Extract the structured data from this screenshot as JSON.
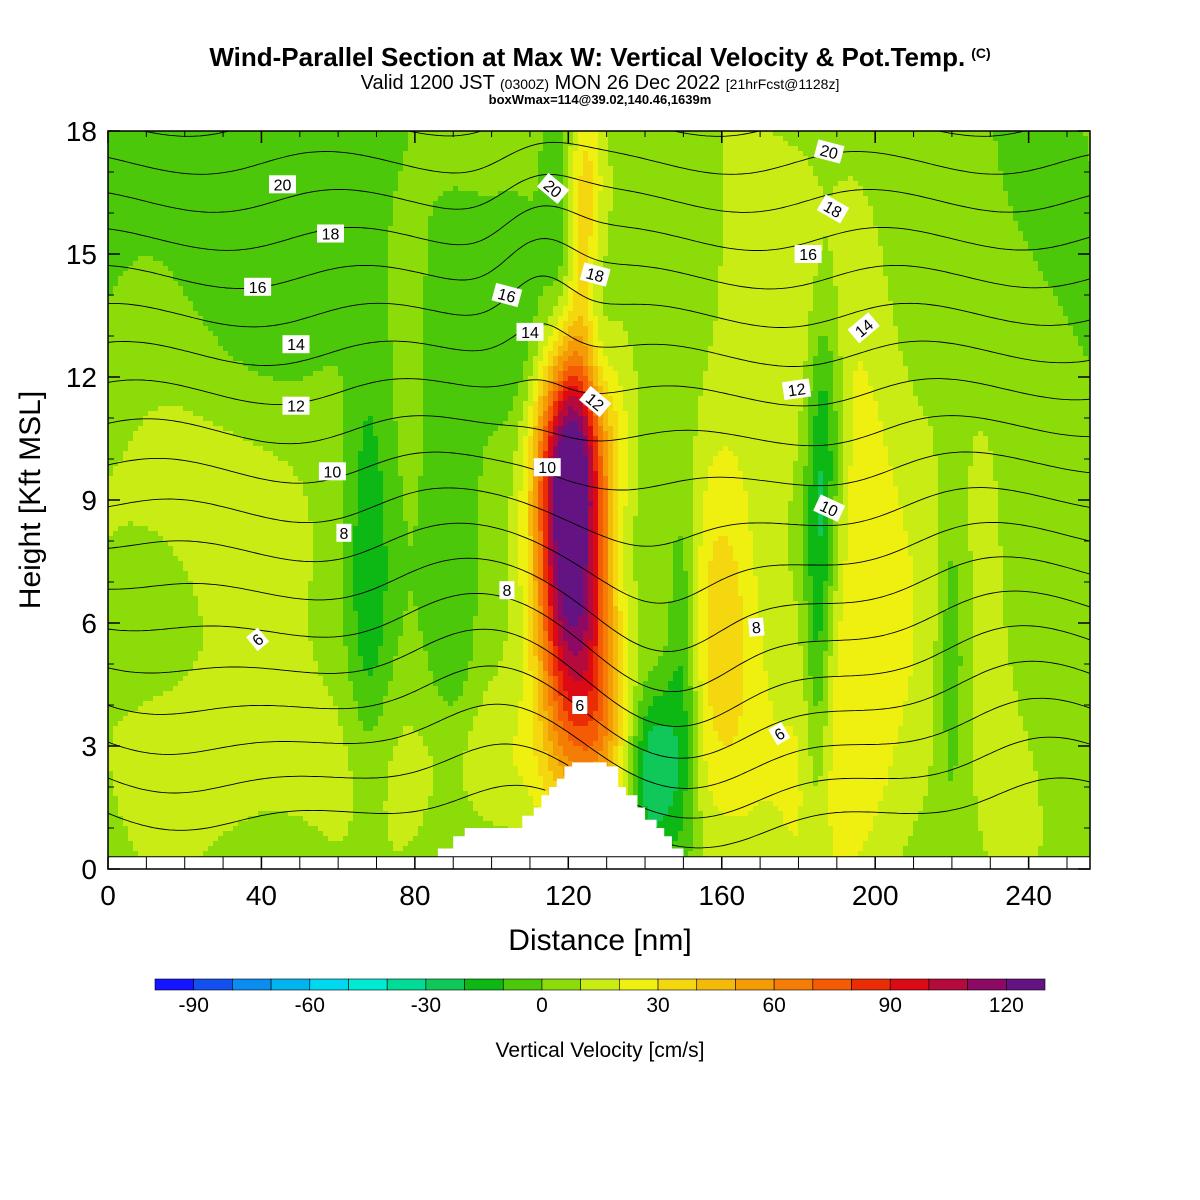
{
  "header": {
    "title": "Wind-Parallel Section at Max W: Vertical Velocity & Pot.Temp.",
    "copyright": "(C)",
    "valid_main": "Valid 1200 JST",
    "valid_utc": "(0300Z)",
    "valid_date": "MON 26 Dec 2022",
    "forecast": "[21hrFcst@1128z]",
    "box_info": "boxWmax=114@39.02,140.46,1639m"
  },
  "chart_data": {
    "type": "heatmap",
    "title": "Wind-Parallel Section at Max W: Vertical Velocity & Pot.Temp.",
    "xlabel": "Distance [nm]",
    "ylabel": "Height [Kft MSL]",
    "xlim": [
      0,
      256
    ],
    "ylim": [
      0,
      18
    ],
    "x_ticks": [
      0,
      40,
      80,
      120,
      160,
      200,
      240
    ],
    "y_ticks": [
      0,
      3,
      6,
      9,
      12,
      15,
      18
    ],
    "colorbar": {
      "label": "Vertical Velocity [cm/s]",
      "ticks": [
        -90,
        -60,
        -30,
        0,
        30,
        60,
        90,
        120
      ],
      "bins": [
        {
          "from": -100,
          "to": -90,
          "color": "#1414ff"
        },
        {
          "from": -90,
          "to": -80,
          "color": "#1450f0"
        },
        {
          "from": -80,
          "to": -70,
          "color": "#0a8cf0"
        },
        {
          "from": -70,
          "to": -60,
          "color": "#00b4f0"
        },
        {
          "from": -60,
          "to": -50,
          "color": "#00d8f0"
        },
        {
          "from": -50,
          "to": -40,
          "color": "#00ecd2"
        },
        {
          "from": -40,
          "to": -30,
          "color": "#00dc96"
        },
        {
          "from": -30,
          "to": -20,
          "color": "#10c85a"
        },
        {
          "from": -20,
          "to": -10,
          "color": "#0eb814"
        },
        {
          "from": -10,
          "to": 0,
          "color": "#4cc80a"
        },
        {
          "from": 0,
          "to": 10,
          "color": "#8cdc0a"
        },
        {
          "from": 10,
          "to": 20,
          "color": "#c8ec14"
        },
        {
          "from": 20,
          "to": 30,
          "color": "#f0f010"
        },
        {
          "from": 30,
          "to": 40,
          "color": "#f5d70f"
        },
        {
          "from": 40,
          "to": 50,
          "color": "#f5b90a"
        },
        {
          "from": 50,
          "to": 60,
          "color": "#f59b05"
        },
        {
          "from": 60,
          "to": 70,
          "color": "#f57d05"
        },
        {
          "from": 70,
          "to": 80,
          "color": "#f55a05"
        },
        {
          "from": 80,
          "to": 90,
          "color": "#eb2d05"
        },
        {
          "from": 90,
          "to": 100,
          "color": "#dc0a14"
        },
        {
          "from": 100,
          "to": 110,
          "color": "#b40a3c"
        },
        {
          "from": 110,
          "to": 120,
          "color": "#8c0a64"
        },
        {
          "from": 120,
          "to": 130,
          "color": "#641482"
        }
      ]
    },
    "velocity_features": [
      {
        "x": 120,
        "y": 7.8,
        "sx": 6,
        "sy": 3.2,
        "value": 125
      },
      {
        "x": 122,
        "y": 10.5,
        "sx": 8,
        "sy": 1.6,
        "value": 45
      },
      {
        "x": 128,
        "y": 6.0,
        "sx": 4.5,
        "sy": 3.0,
        "value": 30
      },
      {
        "x": 130,
        "y": 3.5,
        "sx": 9,
        "sy": 1.8,
        "value": 25
      },
      {
        "x": 100,
        "y": 2.5,
        "sx": 12,
        "sy": 1.4,
        "value": 15
      },
      {
        "x": 125,
        "y": 16.5,
        "sx": 4,
        "sy": 2.2,
        "value": 35
      },
      {
        "x": 160,
        "y": 6.0,
        "sx": 7,
        "sy": 3.5,
        "value": 25
      },
      {
        "x": 195,
        "y": 8.0,
        "sx": 10,
        "sy": 5.0,
        "value": 22
      },
      {
        "x": 25,
        "y": 9.5,
        "sx": 25,
        "sy": 3.0,
        "value": 14
      },
      {
        "x": 180,
        "y": 2.5,
        "sx": 25,
        "sy": 3.0,
        "value": 14
      },
      {
        "x": 40,
        "y": 2.5,
        "sx": 35,
        "sy": 1.8,
        "value": 12
      },
      {
        "x": 230,
        "y": 9.0,
        "sx": 14,
        "sy": 6.0,
        "value": 12
      },
      {
        "x": 170,
        "y": 14.5,
        "sx": 14,
        "sy": 3.5,
        "value": 12
      },
      {
        "x": 142,
        "y": 2.5,
        "sx": 5,
        "sy": 1.6,
        "value": -45
      },
      {
        "x": 150,
        "y": 5.0,
        "sx": 3,
        "sy": 3.0,
        "value": -25
      },
      {
        "x": 187,
        "y": 10.5,
        "sx": 3.5,
        "sy": 2.8,
        "value": -30
      },
      {
        "x": 185,
        "y": 5.5,
        "sx": 2.5,
        "sy": 3.5,
        "value": -25
      },
      {
        "x": 128,
        "y": 13.0,
        "sx": 3,
        "sy": 3.0,
        "value": -20
      },
      {
        "x": 68,
        "y": 7.5,
        "sx": 4,
        "sy": 4.0,
        "value": -20
      },
      {
        "x": 220,
        "y": 5.5,
        "sx": 3,
        "sy": 3.0,
        "value": -20
      },
      {
        "x": 118,
        "y": 15.5,
        "sx": 3,
        "sy": 2.5,
        "value": -20
      },
      {
        "x": 110,
        "y": 12.5,
        "sx": 6,
        "sy": 2.0,
        "value": -15
      },
      {
        "x": 90,
        "y": 6.5,
        "sx": 5,
        "sy": 4.0,
        "value": -15
      },
      {
        "x": 35,
        "y": 14.5,
        "sx": 30,
        "sy": 3.0,
        "value": -12
      },
      {
        "x": 240,
        "y": 14.5,
        "sx": 12,
        "sy": 4.0,
        "value": -12
      }
    ],
    "terrain": {
      "base_height": 0.3,
      "steps": [
        [
          86,
          0.5
        ],
        [
          90,
          0.8
        ],
        [
          93,
          1.0
        ],
        [
          108,
          1.3
        ],
        [
          111,
          1.5
        ],
        [
          113,
          1.8
        ],
        [
          115,
          2.0
        ],
        [
          117,
          2.2
        ],
        [
          119,
          2.5
        ],
        [
          121,
          2.6
        ],
        [
          130,
          2.5
        ],
        [
          133,
          2.0
        ],
        [
          135,
          1.8
        ],
        [
          138,
          1.5
        ],
        [
          140,
          1.2
        ],
        [
          143,
          1.0
        ],
        [
          145,
          0.8
        ],
        [
          147,
          0.5
        ],
        [
          150,
          0.3
        ]
      ]
    },
    "theta_contours": {
      "levels": [
        1,
        2,
        3,
        4,
        5,
        6,
        7,
        8,
        9,
        10,
        11,
        12,
        13,
        14,
        15,
        16,
        17,
        18,
        19,
        20,
        21,
        22,
        23,
        24,
        25
      ],
      "labels": [
        {
          "text": "20",
          "x": 45.5,
          "y": 16.7,
          "angle": 0
        },
        {
          "text": "18",
          "x": 58,
          "y": 15.5,
          "angle": 0
        },
        {
          "text": "16",
          "x": 39,
          "y": 14.2,
          "angle": 0
        },
        {
          "text": "14",
          "x": 49,
          "y": 12.8,
          "angle": 0
        },
        {
          "text": "12",
          "x": 49,
          "y": 11.3,
          "angle": 0
        },
        {
          "text": "10",
          "x": 58.5,
          "y": 9.7,
          "angle": 0
        },
        {
          "text": "8",
          "x": 61.5,
          "y": 8.2,
          "angle": 0
        },
        {
          "text": "6",
          "x": 39,
          "y": 5.6,
          "angle": -40
        },
        {
          "text": "20",
          "x": 116,
          "y": 16.6,
          "angle": 40
        },
        {
          "text": "16",
          "x": 104,
          "y": 14.0,
          "angle": 15
        },
        {
          "text": "14",
          "x": 110,
          "y": 13.1,
          "angle": 0
        },
        {
          "text": "18",
          "x": 127,
          "y": 14.5,
          "angle": 15
        },
        {
          "text": "12",
          "x": 127,
          "y": 11.4,
          "angle": 40
        },
        {
          "text": "10",
          "x": 114.5,
          "y": 9.8,
          "angle": 0
        },
        {
          "text": "8",
          "x": 104,
          "y": 6.8,
          "angle": 0
        },
        {
          "text": "6",
          "x": 123,
          "y": 4.0,
          "angle": 0
        },
        {
          "text": "20",
          "x": 188,
          "y": 17.5,
          "angle": 15
        },
        {
          "text": "18",
          "x": 189,
          "y": 16.1,
          "angle": 30
        },
        {
          "text": "16",
          "x": 182.5,
          "y": 15.0,
          "angle": 0
        },
        {
          "text": "14",
          "x": 197,
          "y": 13.2,
          "angle": -40
        },
        {
          "text": "12",
          "x": 179.5,
          "y": 11.7,
          "angle": -8
        },
        {
          "text": "10",
          "x": 188,
          "y": 8.8,
          "angle": 25
        },
        {
          "text": "8",
          "x": 169,
          "y": 5.9,
          "angle": -5
        },
        {
          "text": "6",
          "x": 175,
          "y": 3.3,
          "angle": -30
        }
      ]
    }
  }
}
